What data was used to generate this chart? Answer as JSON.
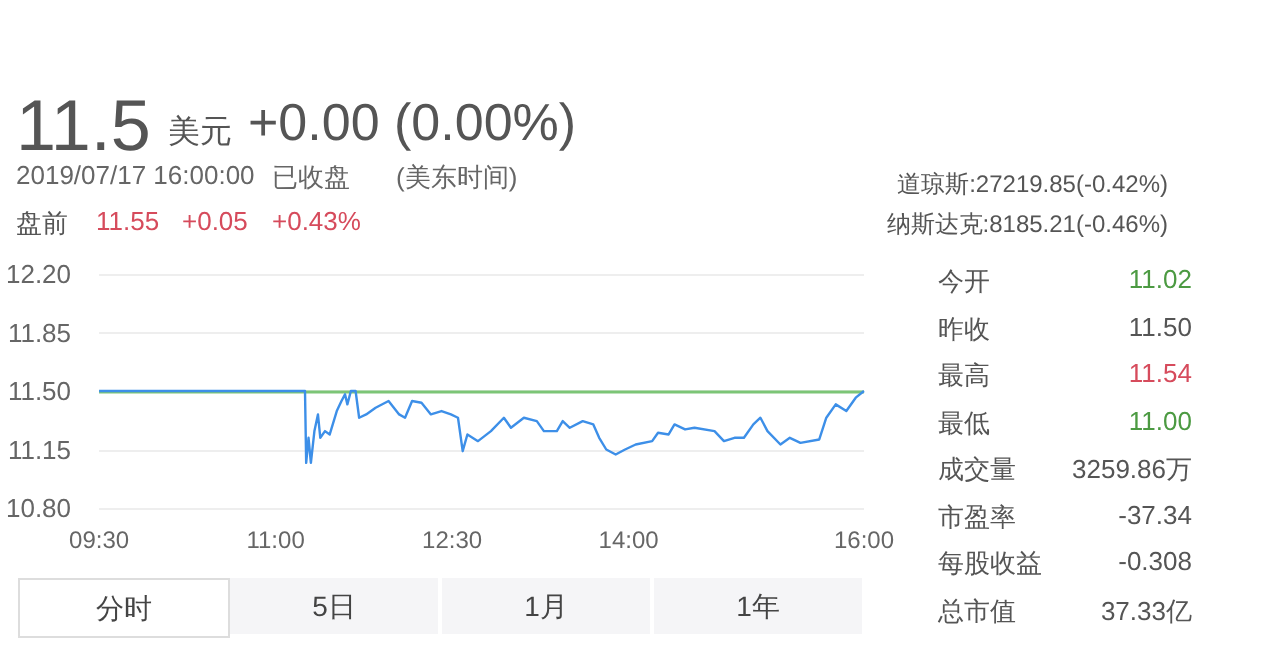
{
  "chart_data": {
    "type": "line",
    "annotations": [
      "11.5",
      "美元",
      "+0.00 (0.00%)",
      "2019/07/17 16:00:00",
      "已收盘",
      "(美东时间)",
      "盘前",
      "11.55",
      "+0.05",
      "+0.43%",
      "道琼斯:27219.85(-0.42%)",
      "纳斯达克:8185.21(-0.46%)",
      "今开",
      "11.02",
      "昨收",
      "11.50",
      "最高",
      "11.54",
      "最低",
      "11.00",
      "成交量",
      "3259.86万",
      "市盈率",
      "-37.34",
      "每股收益",
      "-0.308",
      "总市值",
      "37.33亿",
      "分时",
      "5日",
      "1月",
      "1年"
    ],
    "series": [
      {
        "color": "#3d8fe8",
        "x": [
          9.5,
          11.25,
          11.26,
          11.28,
          11.3,
          11.33,
          11.36,
          11.38,
          11.42,
          11.46,
          11.52,
          11.56,
          11.59,
          11.61,
          11.64,
          11.68,
          11.71,
          11.77,
          11.85,
          11.96,
          12.05,
          12.1,
          12.16,
          12.24,
          12.32,
          12.41,
          12.49,
          12.55,
          12.59,
          12.63,
          12.72,
          12.83,
          12.94,
          13.0,
          13.11,
          13.22,
          13.28,
          13.39,
          13.44,
          13.5,
          13.61,
          13.7,
          13.75,
          13.81,
          13.89,
          13.97,
          14.06,
          14.2,
          14.25,
          14.34,
          14.39,
          14.48,
          14.56,
          14.73,
          14.81,
          14.9,
          14.98,
          15.06,
          15.12,
          15.18,
          15.29,
          15.37,
          15.46,
          15.62,
          15.68,
          15.76,
          15.85,
          15.93,
          16.0
        ],
        "values": [
          11.5,
          11.5,
          11.07,
          11.22,
          11.07,
          11.26,
          11.36,
          11.22,
          11.26,
          11.24,
          11.38,
          11.44,
          11.48,
          11.42,
          11.5,
          11.5,
          11.34,
          11.36,
          11.4,
          11.44,
          11.36,
          11.34,
          11.44,
          11.43,
          11.36,
          11.38,
          11.36,
          11.34,
          11.14,
          11.24,
          11.2,
          11.26,
          11.34,
          11.28,
          11.34,
          11.32,
          11.26,
          11.26,
          11.32,
          11.28,
          11.32,
          11.3,
          11.22,
          11.15,
          11.12,
          11.15,
          11.18,
          11.2,
          11.25,
          11.24,
          11.3,
          11.27,
          11.28,
          11.26,
          11.2,
          11.22,
          11.22,
          11.3,
          11.34,
          11.26,
          11.18,
          11.22,
          11.19,
          11.21,
          11.34,
          11.42,
          11.38,
          11.46,
          11.5
        ]
      }
    ],
    "xlim": [
      9.5,
      16
    ],
    "xticks": [
      {
        "value": 9.5,
        "label": "09:30"
      },
      {
        "value": 11,
        "label": "11:00"
      },
      {
        "value": 12.5,
        "label": "12:30"
      },
      {
        "value": 14,
        "label": "14:00"
      },
      {
        "value": 16,
        "label": "16:00"
      }
    ],
    "ylim": [
      10.8,
      12.2
    ],
    "yticks": [
      {
        "value": 10.8,
        "label": "10.80"
      },
      {
        "value": 11.15,
        "label": "11.15"
      },
      {
        "value": 11.5,
        "label": "11.50"
      },
      {
        "value": 11.85,
        "label": "11.85"
      },
      {
        "value": 12.2,
        "label": "12.20"
      }
    ],
    "ref_lines": [
      {
        "axis": "y",
        "value": 11.5,
        "color": "#7cc576"
      }
    ],
    "grid": "y",
    "marker": "none",
    "line_style": "solid"
  }
}
